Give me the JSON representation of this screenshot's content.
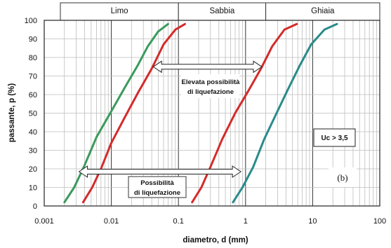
{
  "chart_data": {
    "type": "line",
    "x_scale": "log",
    "xlim": [
      0.001,
      100
    ],
    "ylim": [
      0,
      100
    ],
    "grid": true,
    "xlabel": "diametro, d (mm)",
    "ylabel": "passante, p (%)",
    "x_ticks": [
      "0.001",
      "0.01",
      "0.1",
      "1",
      "10",
      "100"
    ],
    "y_ticks": [
      "0",
      "10",
      "20",
      "30",
      "40",
      "50",
      "60",
      "70",
      "80",
      "90",
      "100"
    ],
    "soil_bands": [
      {
        "label": "Limo",
        "range": [
          0.001,
          0.1
        ]
      },
      {
        "label": "Sabbia",
        "range": [
          0.1,
          2
        ]
      },
      {
        "label": "Ghiaia",
        "range": [
          2,
          100
        ]
      }
    ],
    "series": [
      {
        "color": "#3a9a5c",
        "points": [
          [
            0.002,
            2
          ],
          [
            0.0028,
            10
          ],
          [
            0.004,
            22
          ],
          [
            0.006,
            37
          ],
          [
            0.01,
            51
          ],
          [
            0.016,
            64
          ],
          [
            0.025,
            76
          ],
          [
            0.035,
            86
          ],
          [
            0.05,
            94
          ],
          [
            0.07,
            98
          ]
        ]
      },
      {
        "color": "#d42a2a",
        "points": [
          [
            0.0038,
            2
          ],
          [
            0.0052,
            10
          ],
          [
            0.007,
            20
          ],
          [
            0.01,
            34
          ],
          [
            0.016,
            48
          ],
          [
            0.025,
            61
          ],
          [
            0.04,
            74
          ],
          [
            0.06,
            87
          ],
          [
            0.09,
            95
          ],
          [
            0.125,
            98
          ]
        ]
      },
      {
        "color": "#d42a2a",
        "points": [
          [
            0.16,
            2
          ],
          [
            0.22,
            10
          ],
          [
            0.3,
            21
          ],
          [
            0.45,
            36
          ],
          [
            0.7,
            50
          ],
          [
            1.1,
            62
          ],
          [
            1.7,
            74
          ],
          [
            2.5,
            86
          ],
          [
            3.8,
            95
          ],
          [
            5.8,
            98
          ]
        ]
      },
      {
        "color": "#2a8a8a",
        "points": [
          [
            0.65,
            2
          ],
          [
            0.9,
            10
          ],
          [
            1.3,
            21
          ],
          [
            1.9,
            36
          ],
          [
            2.9,
            50
          ],
          [
            4.3,
            63
          ],
          [
            6.5,
            76
          ],
          [
            9.5,
            87
          ],
          [
            15,
            95
          ],
          [
            23,
            98
          ]
        ]
      }
    ],
    "arrows": [
      {
        "y": 75,
        "from": 0.042,
        "to": 1.75,
        "label_lines": [
          "Elevata possibilità",
          "di liquefazione"
        ]
      },
      {
        "y": 18.5,
        "from": 0.0033,
        "to": 0.85,
        "label_lines": [
          "Possibilità",
          "di liquefazione"
        ]
      }
    ],
    "annotations": {
      "uc_box": "Uc > 3,5",
      "figure_tag": "(b)"
    }
  }
}
